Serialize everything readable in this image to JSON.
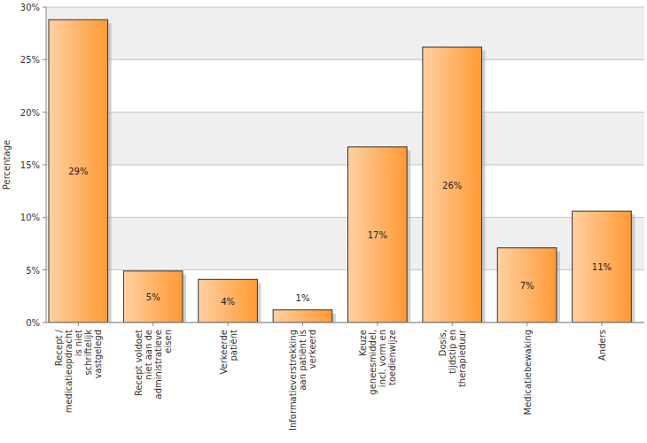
{
  "chart_data": {
    "type": "bar",
    "y_label": "Percentage",
    "categories": [
      "Recept / medicatieopdracht is niet schriftelijk vastgelegd",
      "Recept voldoet niet aan de administratieve eisen",
      "Verkeerde patiënt",
      "Informatieverstrekking aan patiënt is verkeerd",
      "Keuze geneesmiddel, incl. vorm en toedienwijze",
      "Dosis, tijdstip en therapieduur",
      "Medicatiebewaking",
      "Anders"
    ],
    "values": [
      28.8,
      4.9,
      4.1,
      1.2,
      16.7,
      26.2,
      7.1,
      10.6
    ],
    "value_labels": [
      "29%",
      "5%",
      "4%",
      "1%",
      "17%",
      "26%",
      "7%",
      "11%"
    ],
    "color": "#ff9933",
    "ylim": [
      0,
      30
    ],
    "yticks": [
      {
        "value": 0,
        "label": "0%"
      },
      {
        "value": 5,
        "label": "5%"
      },
      {
        "value": 10,
        "label": "10%"
      },
      {
        "value": 15,
        "label": "15%"
      },
      {
        "value": 20,
        "label": "20%"
      },
      {
        "value": 25,
        "label": "25%"
      },
      {
        "value": 30,
        "label": "30%"
      }
    ],
    "grid": true,
    "data_labels": true
  }
}
